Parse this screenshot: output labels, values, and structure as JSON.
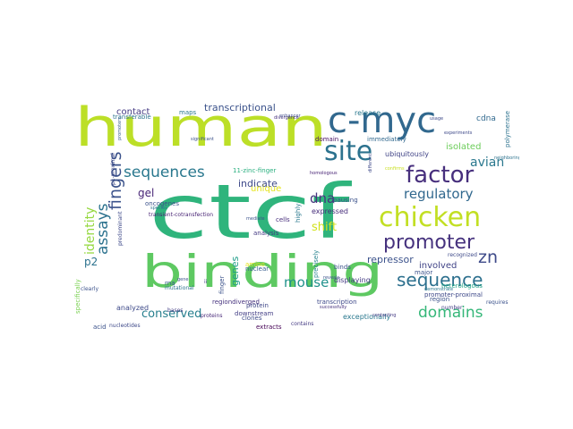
{
  "word_cloud": {
    "words": [
      {
        "text": "human",
        "color": "#bcdf27"
      },
      {
        "text": "ctcf",
        "color": "#2fb47c"
      },
      {
        "text": "binding",
        "color": "#5ec962"
      },
      {
        "text": "c-myc",
        "color": "#31688e"
      },
      {
        "text": "chicken",
        "color": "#c2df23"
      },
      {
        "text": "site",
        "color": "#2c728e"
      },
      {
        "text": "factor",
        "color": "#472f7d"
      },
      {
        "text": "promoter",
        "color": "#46327e"
      },
      {
        "text": "sequence",
        "color": "#2d708e"
      },
      {
        "text": "sequences",
        "color": "#2a788e"
      },
      {
        "text": "fingers",
        "color": "#3b528b"
      },
      {
        "text": "assays",
        "color": "#2c728e"
      },
      {
        "text": "identity",
        "color": "#95d840"
      },
      {
        "text": "domains",
        "color": "#35b779"
      },
      {
        "text": "mouse",
        "color": "#21918c"
      },
      {
        "text": "dna",
        "color": "#46337e"
      },
      {
        "text": "zn",
        "color": "#3e4a89"
      },
      {
        "text": "regulatory",
        "color": "#31688e"
      },
      {
        "text": "avian",
        "color": "#2a788e"
      },
      {
        "text": "conserved",
        "color": "#277f8e"
      },
      {
        "text": "shift",
        "color": "#d2e21b"
      },
      {
        "text": "repressor",
        "color": "#3b528b"
      },
      {
        "text": "genes",
        "color": "#1f9e89"
      },
      {
        "text": "transcriptional",
        "color": "#3b528b"
      },
      {
        "text": "gel",
        "color": "#482677"
      },
      {
        "text": "p2",
        "color": "#2c728e"
      },
      {
        "text": "indicate",
        "color": "#3e4989"
      },
      {
        "text": "contact",
        "color": "#443983"
      },
      {
        "text": "isolated",
        "color": "#6ccd5a"
      },
      {
        "text": "unique",
        "color": "#e5e419"
      },
      {
        "text": "ubiquitously",
        "color": "#414487"
      },
      {
        "text": "involved",
        "color": "#414487"
      },
      {
        "text": "analyzed",
        "color": "#3e4a89"
      },
      {
        "text": "exceptionally",
        "color": "#2a788e"
      },
      {
        "text": "displaying",
        "color": "#443a83"
      },
      {
        "text": "expressed",
        "color": "#472d7b"
      },
      {
        "text": "11-zinc-finger",
        "color": "#29af7f"
      },
      {
        "text": "cdna",
        "color": "#30698e"
      },
      {
        "text": "polymerase",
        "color": "#2c728e"
      },
      {
        "text": "release",
        "color": "#2a788e"
      },
      {
        "text": "domain",
        "color": "#471063"
      },
      {
        "text": "immediately",
        "color": "#31688e"
      },
      {
        "text": "oncogenes",
        "color": "#3b528b"
      },
      {
        "text": "transcription",
        "color": "#3e4989"
      },
      {
        "text": "downstream",
        "color": "#433e85"
      },
      {
        "text": "protein",
        "color": "#3f4788"
      },
      {
        "text": "clones",
        "color": "#3e4a89"
      },
      {
        "text": "contains",
        "color": "#443a83"
      },
      {
        "text": "extracts",
        "color": "#440154"
      },
      {
        "text": "binds",
        "color": "#3b528b"
      },
      {
        "text": "cells",
        "color": "#472d7b"
      },
      {
        "text": "highly",
        "color": "#2a788e"
      },
      {
        "text": "precisely",
        "color": "#26828e"
      },
      {
        "text": "analysis",
        "color": "#443983"
      },
      {
        "text": "major",
        "color": "#3b528b"
      },
      {
        "text": "region",
        "color": "#3b528b"
      },
      {
        "text": "heterologous",
        "color": "#20a386"
      },
      {
        "text": "recognized",
        "color": "#3e4a89"
      },
      {
        "text": "promoter-proximal",
        "color": "#3e4989"
      },
      {
        "text": "nuclear",
        "color": "#365c8d"
      },
      {
        "text": "finger",
        "color": "#3b528b"
      },
      {
        "text": "rna",
        "color": "#365c8d"
      },
      {
        "text": "mutational",
        "color": "#2c728e"
      },
      {
        "text": "p1-proximal",
        "color": "#3e4a89"
      },
      {
        "text": "amino",
        "color": "#e5e419"
      },
      {
        "text": "regiondiverged",
        "color": "#46327e"
      },
      {
        "text": "acid",
        "color": "#3b528b"
      },
      {
        "text": "nucleotides",
        "color": "#3e4989"
      },
      {
        "text": "bases",
        "color": "#433e85"
      },
      {
        "text": "proteins",
        "color": "#482878"
      },
      {
        "text": "specifically",
        "color": "#7ad151"
      },
      {
        "text": "clearly",
        "color": "#3b528b"
      },
      {
        "text": "predominant",
        "color": "#3e4989"
      },
      {
        "text": "transient-cotransfection",
        "color": "#482475"
      },
      {
        "text": "transferable",
        "color": "#2c728e"
      },
      {
        "text": "maps",
        "color": "#2a788e"
      },
      {
        "text": "experiments",
        "color": "#3e4989"
      },
      {
        "text": "demonstrate",
        "color": "#2a788e"
      },
      {
        "text": "requires",
        "color": "#3b528b"
      },
      {
        "text": "number",
        "color": "#433e85"
      },
      {
        "text": "pausing",
        "color": "#3b528b"
      },
      {
        "text": "different",
        "color": "#3e4989"
      },
      {
        "text": "confirms",
        "color": "#c8e020"
      },
      {
        "text": "homologous",
        "color": "#482475"
      },
      {
        "text": "significant",
        "color": "#3b528b"
      },
      {
        "text": "divergence",
        "color": "#46327e"
      },
      {
        "text": "promoters",
        "color": "#365c8d"
      },
      {
        "text": "enhancer",
        "color": "#3e4989"
      },
      {
        "text": "gene",
        "color": "#3b528b"
      },
      {
        "text": "ii",
        "color": "#433e85"
      },
      {
        "text": "species",
        "color": "#2c728e"
      },
      {
        "text": "mediate",
        "color": "#3b528b"
      },
      {
        "text": "contacting",
        "color": "#443983"
      },
      {
        "text": "successfully",
        "color": "#46327e"
      },
      {
        "text": "reveals",
        "color": "#3b528b"
      },
      {
        "text": "usage",
        "color": "#3e4989"
      },
      {
        "text": "neighboring",
        "color": "#2c728e"
      }
    ]
  }
}
